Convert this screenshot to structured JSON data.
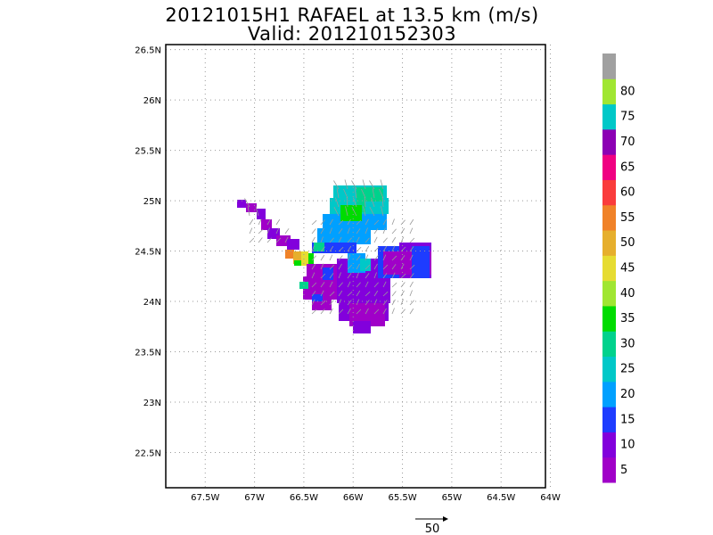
{
  "header": {
    "title_line1": "20121015H1 RAFAEL at 13.5 km (m/s)",
    "title_line2": "Valid: 201210152303"
  },
  "map": {
    "lat_labels": [
      "26.5N",
      "26N",
      "25.5N",
      "25N",
      "24.5N",
      "24N",
      "23.5N",
      "23N",
      "22.5N"
    ],
    "lat_values": [
      26.5,
      26,
      25.5,
      25,
      24.5,
      24,
      23.5,
      23,
      22.5
    ],
    "lon_labels": [
      "67.5W",
      "67W",
      "66.5W",
      "66W",
      "65.5W",
      "65W",
      "64.5W",
      "64W"
    ],
    "lon_values": [
      -67.5,
      -67,
      -66.5,
      -66,
      -65.5,
      -65,
      -64.5,
      -64
    ],
    "lat_range": [
      22.15,
      26.55
    ],
    "lon_range": [
      -67.9,
      -64.05
    ],
    "grid": true
  },
  "colorbar": {
    "labels": [
      "5",
      "10",
      "15",
      "20",
      "25",
      "30",
      "35",
      "40",
      "45",
      "50",
      "55",
      "60",
      "65",
      "70",
      "75",
      "80"
    ],
    "colors": [
      "#a000c8",
      "#8200dc",
      "#1e3cff",
      "#00a0ff",
      "#00c8c8",
      "#00d28c",
      "#00dc00",
      "#a0e632",
      "#e6dc32",
      "#e6af2d",
      "#f08228",
      "#fa3c3c",
      "#f00082",
      "#8c00b4",
      "#00c8c8",
      "#a0e632",
      "#a0a0a0"
    ]
  },
  "reference_vector": {
    "label": "50"
  }
}
